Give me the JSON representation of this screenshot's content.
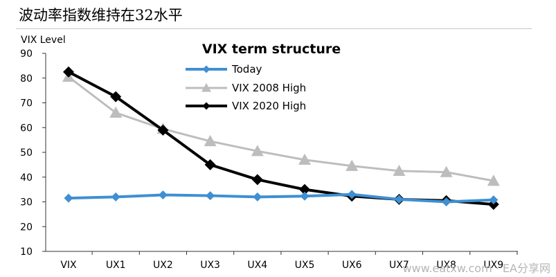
{
  "heading": "波动率指数维持在32水平",
  "watermark": "www.eatxw.com · EA分享网",
  "chart_data": {
    "type": "line",
    "title": "VIX term structure",
    "ylabel": "VIX Level",
    "xlabel": "",
    "categories": [
      "VIX",
      "UX1",
      "UX2",
      "UX3",
      "UX4",
      "UX5",
      "UX6",
      "UX7",
      "UX8",
      "UX9"
    ],
    "ylim": [
      10,
      90
    ],
    "yticks": [
      10,
      20,
      30,
      40,
      50,
      60,
      70,
      80,
      90
    ],
    "grid": false,
    "legend_position": "top-center",
    "series": [
      {
        "name": "Today",
        "color": "#3f8fd2",
        "marker": "diamond",
        "values": [
          31.5,
          32,
          32.8,
          32.5,
          32,
          32.3,
          33,
          31,
          30,
          30.8
        ]
      },
      {
        "name": "VIX 2008 High",
        "color": "#bdbdbd",
        "marker": "triangle",
        "values": [
          80.5,
          66,
          59.5,
          54.5,
          50.5,
          47,
          44.5,
          42.5,
          42,
          38.5
        ]
      },
      {
        "name": "VIX 2020 High",
        "color": "#000000",
        "marker": "diamond",
        "values": [
          82.5,
          72.5,
          59,
          45,
          39,
          35,
          32.3,
          31,
          30.5,
          29
        ]
      }
    ]
  }
}
